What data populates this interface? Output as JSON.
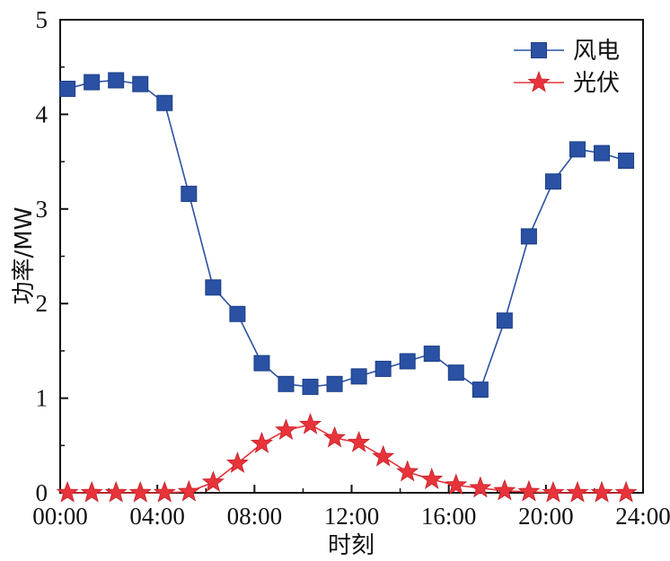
{
  "chart_data": {
    "type": "line",
    "title": "",
    "xlabel": "时刻",
    "ylabel": "功率/MW",
    "xlim": [
      0,
      24
    ],
    "ylim": [
      0,
      5
    ],
    "x_tick_labels": [
      "00:00",
      "04:00",
      "08:00",
      "12:00",
      "16:00",
      "20:00",
      "24:00"
    ],
    "y_tick_labels": [
      "0",
      "1",
      "2",
      "3",
      "4",
      "5"
    ],
    "grid": false,
    "legend_position": "top-right",
    "x": [
      0.3,
      1.3,
      2.3,
      3.3,
      4.3,
      5.3,
      6.3,
      7.3,
      8.3,
      9.3,
      10.3,
      11.3,
      12.3,
      13.3,
      14.3,
      15.3,
      16.3,
      17.3,
      18.3,
      19.3,
      20.3,
      21.3,
      22.3,
      23.3
    ],
    "series": [
      {
        "name": "风电",
        "color": "#2a51a3",
        "marker": "square",
        "values": [
          4.27,
          4.34,
          4.36,
          4.32,
          4.12,
          3.16,
          2.17,
          1.89,
          1.37,
          1.15,
          1.12,
          1.15,
          1.23,
          1.31,
          1.39,
          1.47,
          1.27,
          1.09,
          1.82,
          2.71,
          3.29,
          3.63,
          3.59,
          3.51
        ]
      },
      {
        "name": "光伏",
        "color": "#e8333a",
        "marker": "star",
        "values": [
          0.0,
          0.0,
          0.0,
          0.0,
          0.0,
          0.01,
          0.11,
          0.31,
          0.52,
          0.66,
          0.72,
          0.58,
          0.53,
          0.38,
          0.22,
          0.14,
          0.08,
          0.05,
          0.02,
          0.01,
          0.0,
          0.0,
          0.0,
          0.0
        ]
      }
    ]
  }
}
